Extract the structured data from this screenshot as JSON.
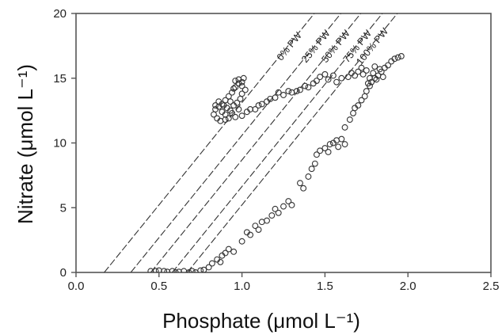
{
  "chart_data": {
    "type": "scatter",
    "title": "",
    "xlabel": "Phosphate (μmol L⁻¹)",
    "ylabel": "Nitrate (μmol L⁻¹)",
    "xlim": [
      0,
      2.5
    ],
    "ylim": [
      0,
      20
    ],
    "xticks": [
      0.0,
      0.5,
      1.0,
      1.5,
      2.0,
      2.5
    ],
    "xtick_labels": [
      "0.0",
      "0.5",
      "1.0",
      "1.5",
      "2.0",
      "2.5"
    ],
    "yticks": [
      0,
      5,
      10,
      15,
      20
    ],
    "ytick_labels": [
      "0",
      "5",
      "10",
      "15",
      "20"
    ],
    "grid": false,
    "mixing_lines": [
      {
        "label": "0% PW",
        "x0": 0.17,
        "slope": 15.8
      },
      {
        "label": "25% PW",
        "x0": 0.33,
        "slope": 15.8
      },
      {
        "label": "50% PW",
        "x0": 0.45,
        "slope": 15.8
      },
      {
        "label": "75% PW",
        "x0": 0.58,
        "slope": 15.8
      },
      {
        "label": "100% PW",
        "x0": 0.67,
        "slope": 15.8
      }
    ],
    "points": [
      [
        0.45,
        0.1
      ],
      [
        0.48,
        0.1
      ],
      [
        0.5,
        0.15
      ],
      [
        0.53,
        0.1
      ],
      [
        0.55,
        0.05
      ],
      [
        0.58,
        0.1
      ],
      [
        0.6,
        0.0
      ],
      [
        0.62,
        0.05
      ],
      [
        0.65,
        0.1
      ],
      [
        0.68,
        0.0
      ],
      [
        0.7,
        0.1
      ],
      [
        0.72,
        0.0
      ],
      [
        0.75,
        0.15
      ],
      [
        0.77,
        0.2
      ],
      [
        0.8,
        0.4
      ],
      [
        0.82,
        0.7
      ],
      [
        0.85,
        1.0
      ],
      [
        0.87,
        0.8
      ],
      [
        0.88,
        1.3
      ],
      [
        0.9,
        1.5
      ],
      [
        0.92,
        1.8
      ],
      [
        0.95,
        1.6
      ],
      [
        1.0,
        2.4
      ],
      [
        1.03,
        3.1
      ],
      [
        1.05,
        2.9
      ],
      [
        1.08,
        3.6
      ],
      [
        1.1,
        3.3
      ],
      [
        1.12,
        3.9
      ],
      [
        1.15,
        4.0
      ],
      [
        1.18,
        4.4
      ],
      [
        1.2,
        4.9
      ],
      [
        1.22,
        4.6
      ],
      [
        1.25,
        5.1
      ],
      [
        1.28,
        5.5
      ],
      [
        1.3,
        5.2
      ],
      [
        1.35,
        6.9
      ],
      [
        1.37,
        6.5
      ],
      [
        1.4,
        7.4
      ],
      [
        1.42,
        8.0
      ],
      [
        1.44,
        8.4
      ],
      [
        1.45,
        9.1
      ],
      [
        1.47,
        9.4
      ],
      [
        1.5,
        9.6
      ],
      [
        1.52,
        9.3
      ],
      [
        1.53,
        9.9
      ],
      [
        1.55,
        10.0
      ],
      [
        1.57,
        10.2
      ],
      [
        1.6,
        10.3
      ],
      [
        1.62,
        9.9
      ],
      [
        1.58,
        9.7
      ],
      [
        1.62,
        11.2
      ],
      [
        1.65,
        11.8
      ],
      [
        1.67,
        12.3
      ],
      [
        1.68,
        12.7
      ],
      [
        1.7,
        12.9
      ],
      [
        1.72,
        13.3
      ],
      [
        1.74,
        13.6
      ],
      [
        1.75,
        14.0
      ],
      [
        1.77,
        14.4
      ],
      [
        1.78,
        14.7
      ],
      [
        1.8,
        15.0
      ],
      [
        1.82,
        15.2
      ],
      [
        1.84,
        15.5
      ],
      [
        1.86,
        15.8
      ],
      [
        1.88,
        16.0
      ],
      [
        1.9,
        16.3
      ],
      [
        1.92,
        16.5
      ],
      [
        1.94,
        16.6
      ],
      [
        1.96,
        16.7
      ],
      [
        1.73,
        15.3
      ],
      [
        1.75,
        15.6
      ],
      [
        1.77,
        15.0
      ],
      [
        1.79,
        15.4
      ],
      [
        1.81,
        14.9
      ],
      [
        1.83,
        15.7
      ],
      [
        1.85,
        15.1
      ],
      [
        1.76,
        14.6
      ],
      [
        1.8,
        15.9
      ],
      [
        1.72,
        15.8
      ],
      [
        1.7,
        15.5
      ],
      [
        1.68,
        15.2
      ],
      [
        1.66,
        15.4
      ],
      [
        1.64,
        15.1
      ],
      [
        1.6,
        15.0
      ],
      [
        1.57,
        14.7
      ],
      [
        1.55,
        15.2
      ],
      [
        1.52,
        14.9
      ],
      [
        1.5,
        15.3
      ],
      [
        1.47,
        15.1
      ],
      [
        1.45,
        14.8
      ],
      [
        1.43,
        14.6
      ],
      [
        1.4,
        14.3
      ],
      [
        1.38,
        14.4
      ],
      [
        1.35,
        14.1
      ],
      [
        1.33,
        14.0
      ],
      [
        1.3,
        13.9
      ],
      [
        1.28,
        14.0
      ],
      [
        1.25,
        13.7
      ],
      [
        1.22,
        13.9
      ],
      [
        1.2,
        13.5
      ],
      [
        1.17,
        13.4
      ],
      [
        1.15,
        13.2
      ],
      [
        1.12,
        13.0
      ],
      [
        1.1,
        12.9
      ],
      [
        1.08,
        12.6
      ],
      [
        1.05,
        12.6
      ],
      [
        1.03,
        12.4
      ],
      [
        1.0,
        12.1
      ],
      [
        0.98,
        12.6
      ],
      [
        0.96,
        12.0
      ],
      [
        0.94,
        12.3
      ],
      [
        0.92,
        11.9
      ],
      [
        0.9,
        12.2
      ],
      [
        0.88,
        12.4
      ],
      [
        0.86,
        12.8
      ],
      [
        0.84,
        12.6
      ],
      [
        0.83,
        12.2
      ],
      [
        0.85,
        11.9
      ],
      [
        0.87,
        11.7
      ],
      [
        0.9,
        11.8
      ],
      [
        0.93,
        12.5
      ],
      [
        0.95,
        12.9
      ],
      [
        0.97,
        13.1
      ],
      [
        0.99,
        13.4
      ],
      [
        1.0,
        13.8
      ],
      [
        1.02,
        14.1
      ],
      [
        1.0,
        14.4
      ],
      [
        0.98,
        14.6
      ],
      [
        0.96,
        14.3
      ],
      [
        0.94,
        13.9
      ],
      [
        0.92,
        13.6
      ],
      [
        0.9,
        13.3
      ],
      [
        0.88,
        13.0
      ],
      [
        0.86,
        13.2
      ],
      [
        0.84,
        12.9
      ],
      [
        0.96,
        14.8
      ],
      [
        0.98,
        14.9
      ],
      [
        1.0,
        14.7
      ],
      [
        1.01,
        15.0
      ],
      [
        0.95,
        14.2
      ],
      [
        0.93,
        13.2
      ],
      [
        0.91,
        12.7
      ],
      [
        0.89,
        12.9
      ]
    ],
    "colors": {
      "axis": "#555555",
      "line": "#333333",
      "marker": "#333333"
    }
  }
}
